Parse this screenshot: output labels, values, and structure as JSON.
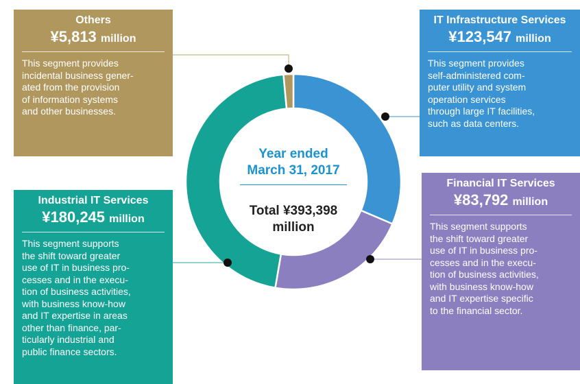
{
  "chart_data": {
    "type": "donut",
    "center_title": "Year ended\nMarch 31, 2017",
    "total_label": "Total ¥393,398\nmillion",
    "unit": "million",
    "categories": [
      "IT Infrastructure Services",
      "Financial IT Services",
      "Industrial IT Services",
      "Others"
    ],
    "values": [
      123547,
      83792,
      180245,
      5813
    ],
    "value_labels": [
      "¥123,547",
      "¥83,792",
      "¥180,245",
      "¥5,813"
    ],
    "colors": [
      "#3a93d2",
      "#8b7fbf",
      "#14a394",
      "#b0975d"
    ],
    "descriptions": [
      "This segment provides\nself-administered com-\nputer utility and system\noperation services\nthrough large IT facilities,\nsuch as data centers.",
      "This segment supports\nthe shift toward greater\nuse of IT in business pro-\ncesses and in the execu-\ntion of business activities,\nwith business know-how\nand IT expertise specific\nto the financial sector.",
      "This segment supports\nthe shift toward greater\nuse of IT in business pro-\ncesses and in the execu-\ntion of business activities,\nwith business know-how\nand IT expertise in areas\nother than finance, par-\nticularly industrial and\npublic finance sectors.",
      "This segment provides\nincidental business gener-\nated from the provision\nof information systems\nand other businesses."
    ]
  }
}
